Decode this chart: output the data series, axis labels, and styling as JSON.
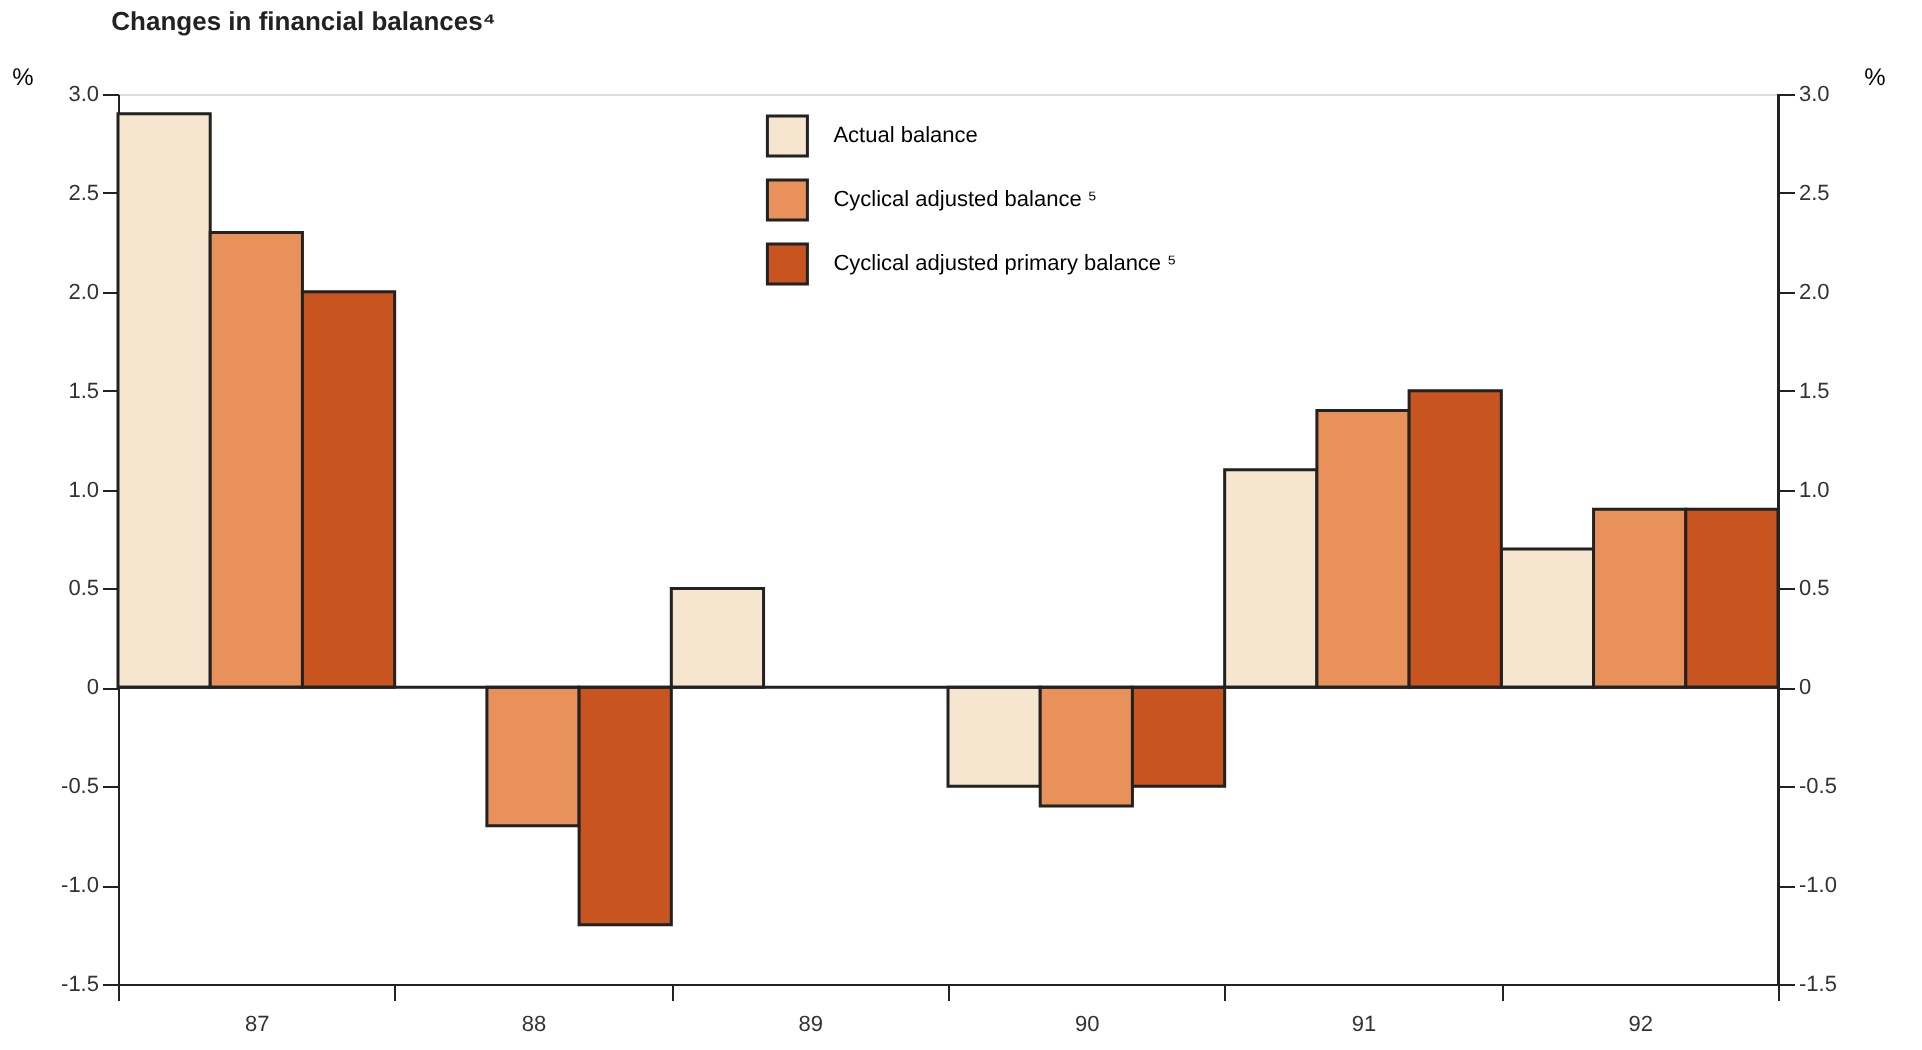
{
  "chart_data": {
    "type": "bar",
    "title": "Changes in financial balances⁴",
    "ylabel": "%",
    "y2label": "%",
    "categories": [
      "87",
      "88",
      "89",
      "90",
      "91",
      "92"
    ],
    "series": [
      {
        "name": "Actual balance",
        "color": "#f7e6cf",
        "values": [
          2.9,
          null,
          0.5,
          -0.5,
          1.1,
          0.7
        ]
      },
      {
        "name": "Cyclical adjusted balance ⁵",
        "color": "#e8915a",
        "values": [
          2.3,
          -0.7,
          null,
          -0.6,
          1.4,
          0.9
        ]
      },
      {
        "name": "Cyclical adjusted primary balance ⁵",
        "color": "#c8541f",
        "values": [
          2.0,
          -1.2,
          null,
          -0.5,
          1.5,
          0.9
        ]
      }
    ],
    "ylim": [
      -1.5,
      3.0
    ],
    "yticks": [
      {
        "value": -1.5,
        "label": "-1.5"
      },
      {
        "value": -1.0,
        "label": "-1.0"
      },
      -0.5,
      0,
      0.5,
      {
        "value": 1.0,
        "label": "1.0"
      },
      1.5,
      {
        "value": 2.0,
        "label": "2.0"
      },
      2.5,
      {
        "value": 3.0,
        "label": "3.0"
      }
    ],
    "y2lim": [
      -1.5,
      3.0
    ],
    "y2ticks": [
      {
        "value": -1.5,
        "label": "-1.5"
      },
      {
        "value": -1.0,
        "label": "-1.0"
      },
      -0.5,
      0,
      0.5,
      {
        "value": 1.0,
        "label": "1.0"
      },
      1.5,
      {
        "value": 2.0,
        "label": "2.0"
      },
      2.5,
      {
        "value": 3.0,
        "label": "3.0"
      }
    ],
    "ref_lines": [
      {
        "axis": "y",
        "value": 0
      }
    ],
    "grid": false,
    "legend": "top"
  }
}
